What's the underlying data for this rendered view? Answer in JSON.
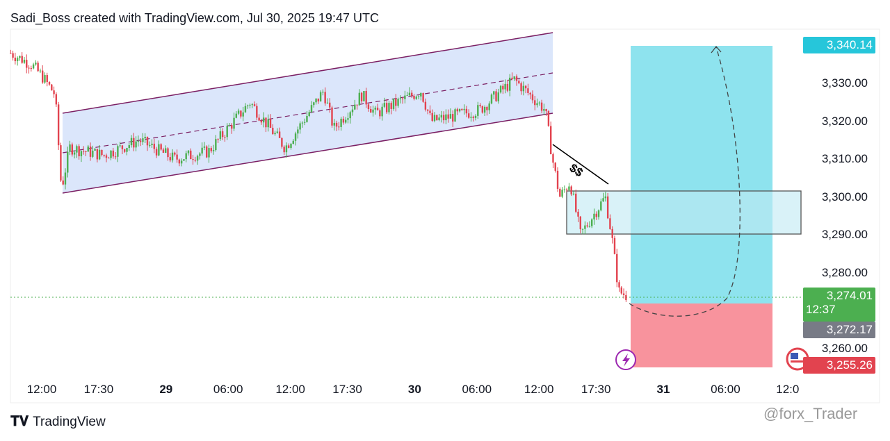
{
  "header": {
    "title": "Sadi_Boss created with TradingView.com, Jul 30, 2025 19:47 UTC"
  },
  "footer": {
    "logo": "TradingView",
    "watermark": "@forx_Trader"
  },
  "colors": {
    "up": "#4caf50",
    "down": "#e2434f",
    "channel": "#dbe6fb",
    "target": "#8ee3ee",
    "stop": "#f8939d",
    "box": "#d7f3f8"
  },
  "chart_data": {
    "type": "candlestick",
    "yticks": [
      "3,330.00",
      "3,320.00",
      "3,310.00",
      "3,300.00",
      "3,290.00",
      "3,280.00",
      "3,260.00"
    ],
    "ytick_values": [
      3330,
      3320,
      3310,
      3300,
      3290,
      3280,
      3260
    ],
    "xticks": [
      {
        "label": "12:00",
        "bold": false
      },
      {
        "label": "17:30",
        "bold": false
      },
      {
        "label": "29",
        "bold": true
      },
      {
        "label": "06:00",
        "bold": false
      },
      {
        "label": "12:00",
        "bold": false
      },
      {
        "label": "17:30",
        "bold": false
      },
      {
        "label": "30",
        "bold": true
      },
      {
        "label": "06:00",
        "bold": false
      },
      {
        "label": "12:00",
        "bold": false
      },
      {
        "label": "17:30",
        "bold": false
      },
      {
        "label": "31",
        "bold": true
      },
      {
        "label": "06:00",
        "bold": false
      },
      {
        "label": "12:0",
        "bold": false
      }
    ],
    "xtick_hours": [
      0,
      5.5,
      12,
      18,
      24,
      29.5,
      36,
      42,
      48,
      53.5,
      60,
      66,
      72
    ],
    "price_path": [
      [
        -3,
        3338
      ],
      [
        -1,
        3335
      ],
      [
        0,
        3332
      ],
      [
        1.3,
        3327
      ],
      [
        1.9,
        3302
      ],
      [
        2.7,
        3313
      ],
      [
        6,
        3311
      ],
      [
        9.4,
        3315
      ],
      [
        12.8,
        3310
      ],
      [
        16.1,
        3312
      ],
      [
        20.1,
        3325
      ],
      [
        23.5,
        3313
      ],
      [
        27.2,
        3328
      ],
      [
        28.2,
        3318
      ],
      [
        30.9,
        3327
      ],
      [
        32.2,
        3322
      ],
      [
        36.6,
        3328
      ],
      [
        37.6,
        3320
      ],
      [
        42.3,
        3323
      ],
      [
        45.6,
        3331
      ],
      [
        48.6,
        3323
      ],
      [
        49.3,
        3310
      ],
      [
        50,
        3300
      ],
      [
        51,
        3304
      ],
      [
        52,
        3290
      ],
      [
        54.4,
        3300
      ],
      [
        55,
        3290
      ],
      [
        55.7,
        3275
      ],
      [
        56.4,
        3274
      ]
    ],
    "labels": {
      "target": "3,340.14",
      "last": "3,274.01",
      "countdown": "12:37",
      "prev": "3,272.17",
      "stop": "3,255.26"
    },
    "annotation": "$$"
  }
}
